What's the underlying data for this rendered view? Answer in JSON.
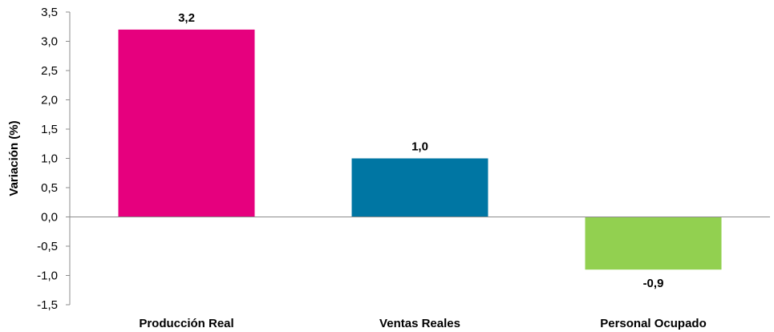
{
  "chart_data": {
    "type": "bar",
    "title": "",
    "xlabel": "",
    "ylabel": "Variación (%)",
    "categories": [
      "Producción Real",
      "Ventas Reales",
      "Personal Ocupado"
    ],
    "values": [
      3.2,
      1.0,
      -0.9
    ],
    "data_labels": [
      "3,2",
      "1,0",
      "-0,9"
    ],
    "colors": [
      "#E6007E",
      "#0076A3",
      "#92D050"
    ],
    "ylim": [
      -1.5,
      3.5
    ],
    "yticks": [
      3.5,
      3.0,
      2.5,
      2.0,
      1.5,
      1.0,
      0.5,
      0.0,
      -0.5,
      -1.0,
      -1.5
    ],
    "ytick_labels": [
      "3,5",
      "3,0",
      "2,5",
      "2,0",
      "1,5",
      "1,0",
      "0,5",
      "0,0",
      "-0,5",
      "-1,0",
      "-1,5"
    ],
    "grid": false,
    "legend": "none"
  }
}
